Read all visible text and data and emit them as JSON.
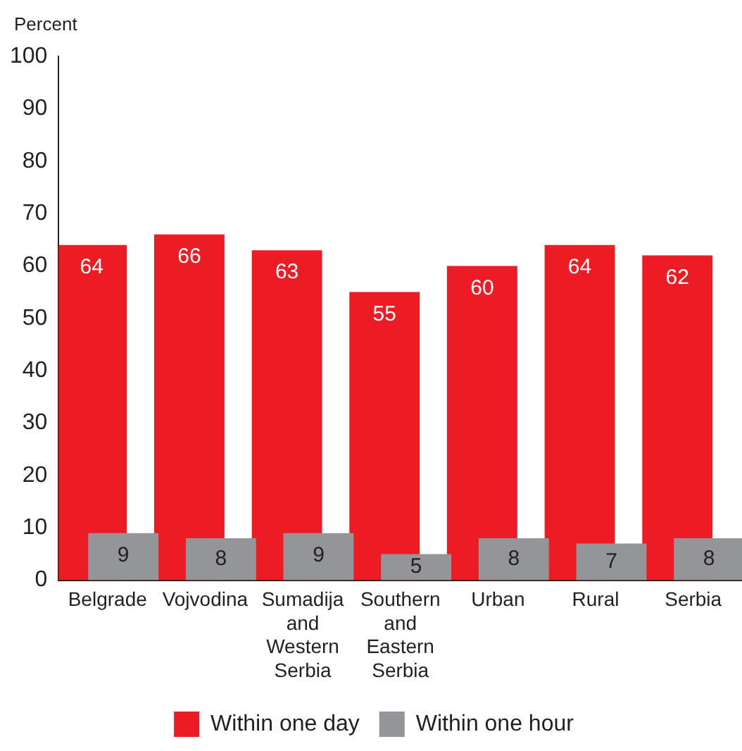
{
  "chart_data": {
    "type": "bar",
    "ylabel": "Percent",
    "categories": [
      "Belgrade",
      "Vojvodina",
      "Sumadija and Western Serbia",
      "Southern and Eastern Serbia",
      "Urban",
      "Rural",
      "Serbia"
    ],
    "series": [
      {
        "name": "Within one day",
        "color": "#ed1c24",
        "values": [
          64,
          66,
          63,
          55,
          60,
          64,
          62
        ]
      },
      {
        "name": "Within one hour",
        "color": "#939598",
        "values": [
          9,
          8,
          9,
          5,
          8,
          7,
          8
        ]
      }
    ],
    "ylim": [
      0,
      100
    ],
    "yticks": [
      0,
      10,
      20,
      30,
      40,
      50,
      60,
      70,
      80,
      90,
      100
    ],
    "grid": false,
    "legend": "bottom",
    "data_labels": true
  }
}
